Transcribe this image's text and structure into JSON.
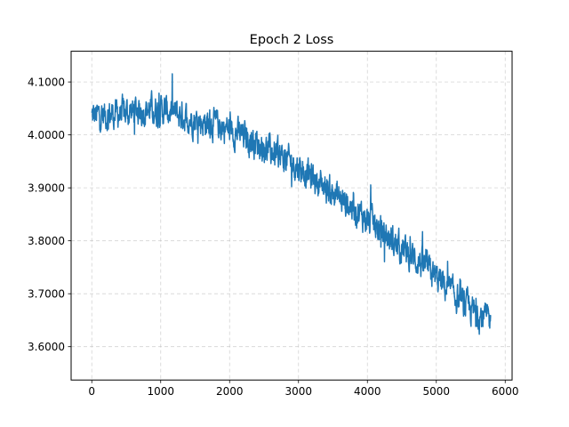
{
  "chart_data": {
    "type": "line",
    "title": "Epoch 2 Loss",
    "xlabel": "",
    "ylabel": "",
    "xlim": [
      -300,
      6100
    ],
    "ylim": [
      3.537,
      4.158
    ],
    "x_ticks": [
      0,
      1000,
      2000,
      3000,
      4000,
      5000,
      6000
    ],
    "x_tick_labels": [
      "0",
      "1000",
      "2000",
      "3000",
      "4000",
      "5000",
      "6000"
    ],
    "y_ticks": [
      3.6,
      3.7,
      3.8,
      3.9,
      4.0,
      4.1
    ],
    "y_tick_labels": [
      "3.6000",
      "3.7000",
      "3.8000",
      "3.9000",
      "4.0000",
      "4.1000"
    ],
    "grid": true,
    "grid_style": "dashed",
    "series": [
      {
        "color": "#1f77b4",
        "x_start": 0,
        "x_end": 5790,
        "n_points": 5790,
        "trend_x": [
          0,
          200,
          400,
          600,
          800,
          1000,
          1200,
          1400,
          1600,
          1800,
          2000,
          2200,
          2400,
          2600,
          2800,
          3000,
          3200,
          3400,
          3600,
          3800,
          4000,
          4200,
          4400,
          4600,
          4800,
          5000,
          5200,
          5400,
          5600,
          5790
        ],
        "trend_y": [
          4.035,
          4.038,
          4.04,
          4.045,
          4.048,
          4.047,
          4.04,
          4.032,
          4.025,
          4.02,
          4.01,
          3.998,
          3.985,
          3.968,
          3.955,
          3.94,
          3.92,
          3.9,
          3.88,
          3.862,
          3.84,
          3.818,
          3.795,
          3.775,
          3.755,
          3.73,
          3.705,
          3.68,
          3.66,
          3.65
        ],
        "noise_amplitude": 0.022,
        "min_value": 3.565,
        "max_value": 4.13
      }
    ]
  }
}
